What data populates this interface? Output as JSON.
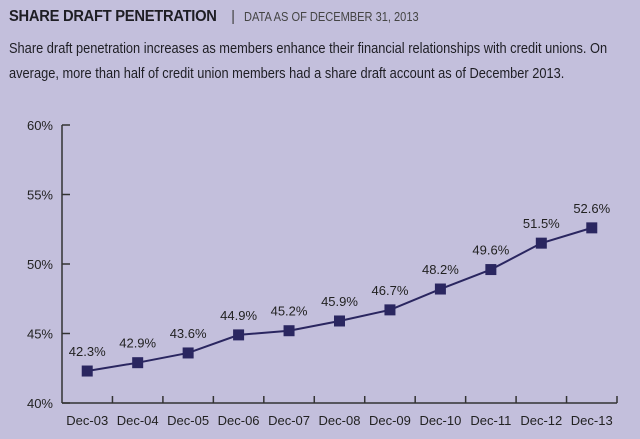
{
  "header": {
    "title": "SHARE DRAFT PENETRATION",
    "separator": "|",
    "subtitle": "DATA AS OF DECEMBER 31, 2013",
    "description": "Share draft penetration increases as members enhance their financial relationships with credit unions. On average, more than half of credit union members had a share draft account as of December 2013."
  },
  "colors": {
    "background": "#c3bfdc",
    "series": "#2a2660",
    "axis": "#333333"
  },
  "chart_data": {
    "type": "line",
    "title": "SHARE DRAFT PENETRATION",
    "xlabel": "",
    "ylabel": "",
    "categories": [
      "Dec-03",
      "Dec-04",
      "Dec-05",
      "Dec-06",
      "Dec-07",
      "Dec-08",
      "Dec-09",
      "Dec-10",
      "Dec-11",
      "Dec-12",
      "Dec-13"
    ],
    "series": [
      {
        "name": "Share draft penetration",
        "values": [
          42.3,
          42.9,
          43.6,
          44.9,
          45.2,
          45.9,
          46.7,
          48.2,
          49.6,
          51.5,
          52.6
        ],
        "labels": [
          "42.3%",
          "42.9%",
          "43.6%",
          "44.9%",
          "45.2%",
          "45.9%",
          "46.7%",
          "48.2%",
          "49.6%",
          "51.5%",
          "52.6%"
        ]
      }
    ],
    "ylim": [
      40,
      60
    ],
    "yticks": [
      40,
      45,
      50,
      55,
      60
    ],
    "ytick_labels": [
      "40%",
      "45%",
      "50%",
      "55%",
      "60%"
    ],
    "grid": false,
    "marker": "square"
  }
}
